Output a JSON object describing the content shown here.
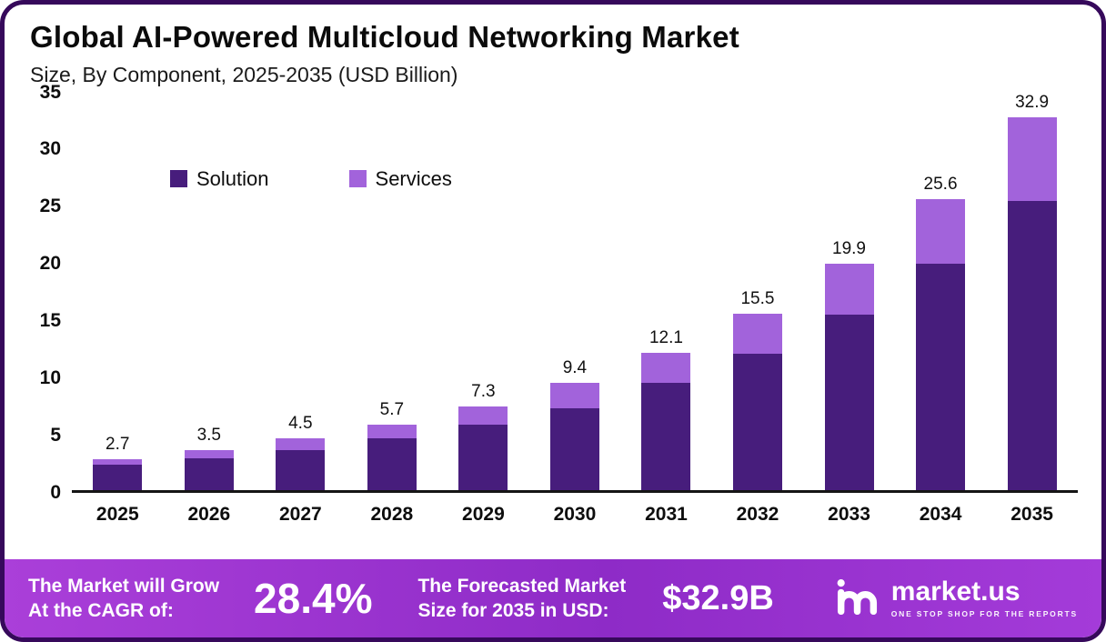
{
  "header": {
    "title": "Global AI-Powered Multicloud Networking Market",
    "subtitle": "Size, By Component, 2025-2035 (USD Billion)"
  },
  "chart_data": {
    "type": "bar",
    "stacked": true,
    "title": "Global AI-Powered Multicloud Networking Market Size, By Component, 2025-2035 (USD Billion)",
    "xlabel": "",
    "ylabel": "USD Billion",
    "categories": [
      "2025",
      "2026",
      "2027",
      "2028",
      "2029",
      "2030",
      "2031",
      "2032",
      "2033",
      "2034",
      "2035"
    ],
    "series": [
      {
        "name": "Solution",
        "color": "#471D7C",
        "values": [
          2.2,
          2.8,
          3.5,
          4.5,
          5.7,
          7.2,
          9.4,
          12.0,
          15.4,
          19.9,
          25.5
        ]
      },
      {
        "name": "Services",
        "color": "#A263DB",
        "values": [
          0.5,
          0.7,
          1.0,
          1.2,
          1.6,
          2.2,
          2.7,
          3.5,
          4.5,
          5.7,
          7.4
        ]
      }
    ],
    "totals": [
      2.7,
      3.5,
      4.5,
      5.7,
      7.3,
      9.4,
      12.1,
      15.5,
      19.9,
      25.6,
      32.9
    ],
    "total_labels": [
      "2.7",
      "3.5",
      "4.5",
      "5.7",
      "7.3",
      "9.4",
      "12.1",
      "15.5",
      "19.9",
      "25.6",
      "32.9"
    ],
    "ylim": [
      0,
      35
    ],
    "yticks": [
      0,
      5,
      10,
      15,
      20,
      25,
      30,
      35
    ],
    "grid": false,
    "legend_position": "inside-top-left"
  },
  "footer": {
    "cagr_label_line1": "The Market will Grow",
    "cagr_label_line2": "At the CAGR of:",
    "cagr_value": "28.4%",
    "forecast_label_line1": "The Forecasted Market",
    "forecast_label_line2": "Size for 2035 in USD:",
    "forecast_value": "$32.9B",
    "brand_name": "market.us",
    "brand_tagline": "ONE STOP SHOP FOR THE REPORTS"
  }
}
